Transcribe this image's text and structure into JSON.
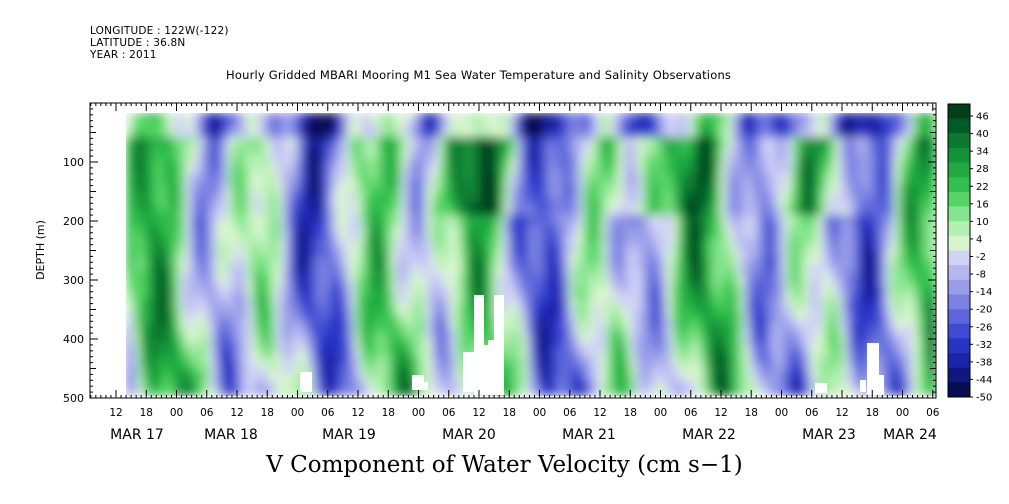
{
  "header": {
    "longitude_label": "LONGITUDE : 122W(-122)",
    "latitude_label": "LATITUDE : 36.8N",
    "year_label": "YEAR : 2011"
  },
  "chart_data": {
    "type": "heatmap",
    "title": "Hourly Gridded MBARI Mooring M1 Sea Water Temperature and Salinity Observations",
    "variable_title": "V Component of Water Velocity (cm s−1)",
    "ylabel": "DEPTH (m)",
    "xlabel": "",
    "y_inverted": true,
    "ylim": [
      0,
      500
    ],
    "y_ticks": [
      "100",
      "200",
      "300",
      "400",
      "500"
    ],
    "x_hour_labels": [
      "12",
      "18",
      "00",
      "06",
      "12",
      "18",
      "00",
      "06",
      "12",
      "18",
      "00",
      "06",
      "12",
      "18",
      "00",
      "06",
      "12",
      "18",
      "00",
      "06",
      "12",
      "18",
      "00",
      "06",
      "12",
      "18",
      "00",
      "06"
    ],
    "x_day_labels": [
      "MAR 17",
      "MAR 18",
      "MAR 19",
      "MAR 20",
      "MAR 21",
      "MAR 22",
      "MAR 23",
      "MAR 24"
    ],
    "colorbar": {
      "labels": [
        "46",
        "40",
        "34",
        "28",
        "22",
        "16",
        "10",
        "4",
        "-2",
        "-8",
        "-14",
        "-20",
        "-26",
        "-32",
        "-38",
        "-44",
        "-50"
      ],
      "colors": [
        "#003f1a",
        "#005c26",
        "#0a7a32",
        "#139238",
        "#1eaa3f",
        "#33bf4e",
        "#56d466",
        "#86e48e",
        "#b4f0b2",
        "#d8f5d0",
        "#d0d2f6",
        "#b5b8f0",
        "#989de9",
        "#7b82e2",
        "#5d67db",
        "#3e4bd2",
        "#2733c2",
        "#1a24a6",
        "#101880",
        "#070d52"
      ]
    }
  }
}
